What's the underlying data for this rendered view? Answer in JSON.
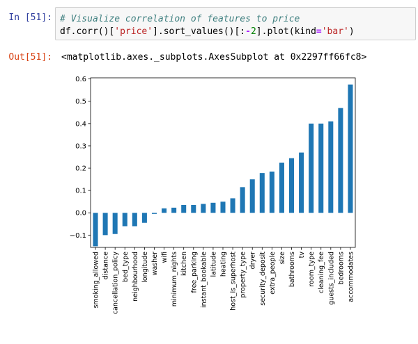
{
  "cell": {
    "in_prompt": "In [51]:",
    "out_prompt": "Out[51]:",
    "code_line1": "# Visualize correlation of features to price",
    "code_line2": {
      "p1": "df.corr()[",
      "s1": "'price'",
      "p2": "].sort_values()[:",
      "op": "-",
      "num": "2",
      "p3": "].plot(kind",
      "eq": "=",
      "s2": "'bar'",
      "p4": ")"
    },
    "output_repr": "<matplotlib.axes._subplots.AxesSubplot at 0x2297ff66fc8>"
  },
  "colors": {
    "bar": "#1f77b4",
    "code_bg": "#f7f7f7",
    "in_prompt": "#303f9f",
    "out_prompt": "#d84315"
  },
  "chart_data": {
    "type": "bar",
    "categories": [
      "smoking_allowed",
      "distance",
      "cancellation_policy",
      "bed_type",
      "neighbourhood",
      "longitude",
      "washer",
      "wifi",
      "minimum_nights",
      "kitchen",
      "free_parking",
      "instant_bookable",
      "latitude",
      "heating",
      "host_is_superhost",
      "property_type",
      "dryer",
      "security_deposit",
      "extra_people",
      "size",
      "bathrooms",
      "tv",
      "room_type",
      "cleaning_fee",
      "guests_included",
      "bedrooms",
      "accommodates"
    ],
    "values": [
      -0.15,
      -0.1,
      -0.095,
      -0.06,
      -0.06,
      -0.045,
      -0.005,
      0.02,
      0.023,
      0.035,
      0.035,
      0.04,
      0.045,
      0.05,
      0.065,
      0.115,
      0.15,
      0.178,
      0.185,
      0.225,
      0.245,
      0.27,
      0.4,
      0.4,
      0.41,
      0.47,
      0.575
    ],
    "yticks": [
      "−0.1",
      "0.0",
      "0.1",
      "0.2",
      "0.3",
      "0.4",
      "0.5",
      "0.6"
    ],
    "ytick_values": [
      -0.1,
      0.0,
      0.1,
      0.2,
      0.3,
      0.4,
      0.5,
      0.6
    ],
    "ylim": [
      -0.155,
      0.605
    ],
    "legend": false,
    "grid": false
  }
}
